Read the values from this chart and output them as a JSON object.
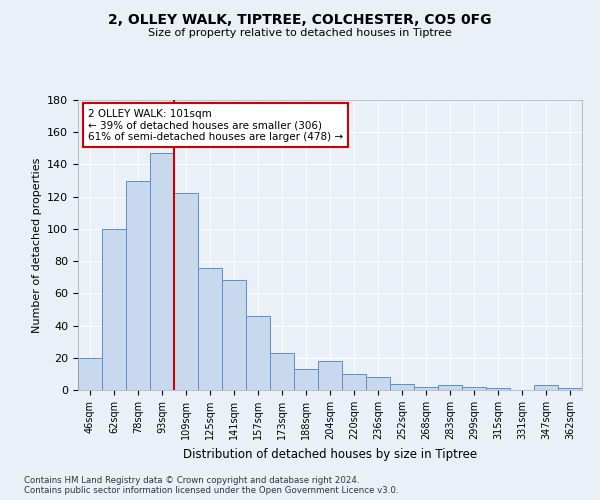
{
  "title1": "2, OLLEY WALK, TIPTREE, COLCHESTER, CO5 0FG",
  "title2": "Size of property relative to detached houses in Tiptree",
  "xlabel": "Distribution of detached houses by size in Tiptree",
  "ylabel": "Number of detached properties",
  "categories": [
    "46sqm",
    "62sqm",
    "78sqm",
    "93sqm",
    "109sqm",
    "125sqm",
    "141sqm",
    "157sqm",
    "173sqm",
    "188sqm",
    "204sqm",
    "220sqm",
    "236sqm",
    "252sqm",
    "268sqm",
    "283sqm",
    "299sqm",
    "315sqm",
    "331sqm",
    "347sqm",
    "362sqm"
  ],
  "values": [
    20,
    100,
    130,
    147,
    122,
    76,
    68,
    46,
    23,
    13,
    18,
    10,
    8,
    4,
    2,
    3,
    2,
    1,
    0,
    3,
    1
  ],
  "bar_color": "#c9d9ed",
  "bar_edge_color": "#5b8fc9",
  "vline_index": 3,
  "annotation_text": "2 OLLEY WALK: 101sqm\n← 39% of detached houses are smaller (306)\n61% of semi-detached houses are larger (478) →",
  "annotation_box_color": "#ffffff",
  "annotation_box_edge": "#cc0000",
  "vline_color": "#cc0000",
  "ylim": [
    0,
    180
  ],
  "yticks": [
    0,
    20,
    40,
    60,
    80,
    100,
    120,
    140,
    160,
    180
  ],
  "footer": "Contains HM Land Registry data © Crown copyright and database right 2024.\nContains public sector information licensed under the Open Government Licence v3.0.",
  "bg_color": "#eaf0f8",
  "grid_color": "#ffffff"
}
